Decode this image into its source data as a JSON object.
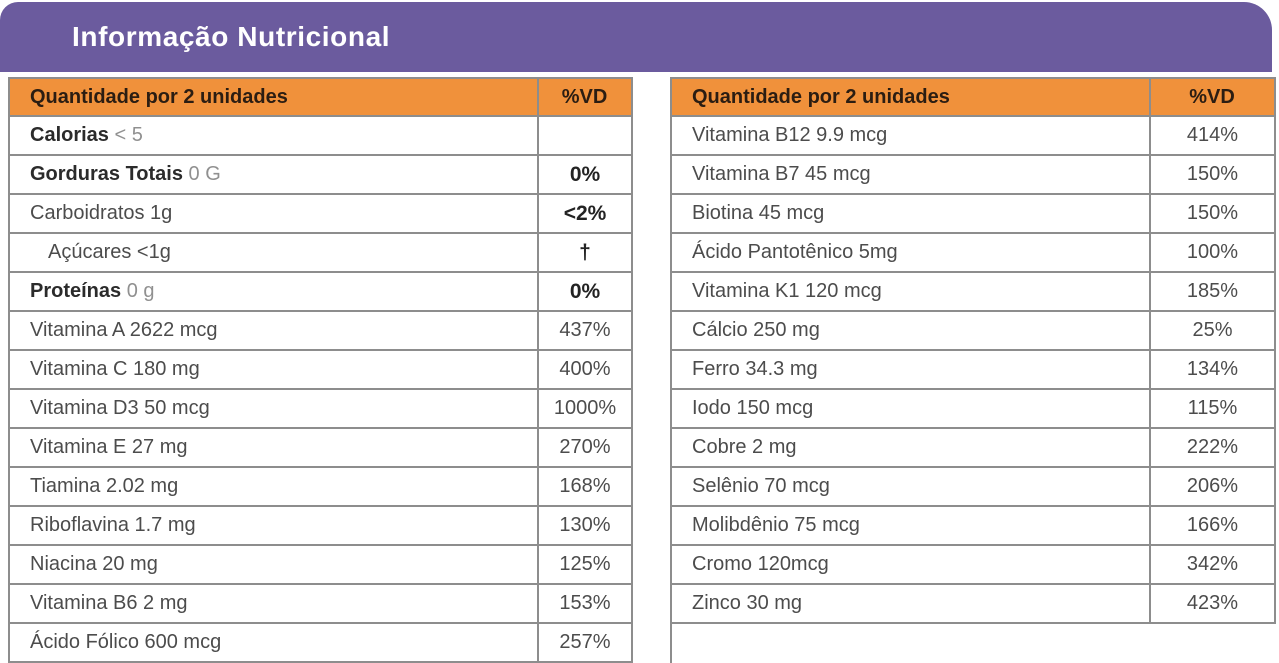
{
  "title": "Informação Nutricional",
  "colors": {
    "banner_purple": "#6b5b9e",
    "header_orange": "#f0913b",
    "border_gray": "#8d8d8d"
  },
  "left_table": {
    "header": {
      "quantity_label": "Quantidade por 2 unidades",
      "vd_label": "%VD"
    },
    "rows": [
      {
        "bold": "Calorias",
        "rest": " < 5",
        "muted": true,
        "indent": false,
        "vd": "",
        "vd_bold": false
      },
      {
        "bold": "Gorduras Totais",
        "rest": " 0 G",
        "muted": true,
        "indent": false,
        "vd": "0%",
        "vd_bold": true
      },
      {
        "bold": "",
        "rest": "Carboidratos 1g",
        "muted": false,
        "indent": false,
        "vd": "<2%",
        "vd_bold": true
      },
      {
        "bold": "",
        "rest": "Açúcares <1g",
        "muted": false,
        "indent": true,
        "vd": "†",
        "vd_bold": true
      },
      {
        "bold": "Proteínas",
        "rest": " 0 g",
        "muted": true,
        "indent": false,
        "vd": "0%",
        "vd_bold": true
      },
      {
        "bold": "",
        "rest": "Vitamina A 2622 mcg",
        "muted": false,
        "indent": false,
        "vd": "437%",
        "vd_bold": false
      },
      {
        "bold": "",
        "rest": "Vitamina C 180 mg",
        "muted": false,
        "indent": false,
        "vd": "400%",
        "vd_bold": false
      },
      {
        "bold": "",
        "rest": "Vitamina D3 50 mcg",
        "muted": false,
        "indent": false,
        "vd": "1000%",
        "vd_bold": false
      },
      {
        "bold": "",
        "rest": "Vitamina E 27 mg",
        "muted": false,
        "indent": false,
        "vd": "270%",
        "vd_bold": false
      },
      {
        "bold": "",
        "rest": "Tiamina 2.02 mg",
        "muted": false,
        "indent": false,
        "vd": "168%",
        "vd_bold": false
      },
      {
        "bold": "",
        "rest": "Riboflavina 1.7 mg",
        "muted": false,
        "indent": false,
        "vd": "130%",
        "vd_bold": false
      },
      {
        "bold": "",
        "rest": "Niacina 20 mg",
        "muted": false,
        "indent": false,
        "vd": "125%",
        "vd_bold": false
      },
      {
        "bold": "",
        "rest": "Vitamina B6 2 mg",
        "muted": false,
        "indent": false,
        "vd": "153%",
        "vd_bold": false
      },
      {
        "bold": "",
        "rest": "Ácido Fólico 600 mcg",
        "muted": false,
        "indent": false,
        "vd": "257%",
        "vd_bold": false
      }
    ]
  },
  "right_table": {
    "header": {
      "quantity_label": "Quantidade por 2 unidades",
      "vd_label": "%VD"
    },
    "rows": [
      {
        "bold": "",
        "rest": "Vitamina B12 9.9 mcg",
        "muted": false,
        "indent": false,
        "vd": "414%",
        "vd_bold": false
      },
      {
        "bold": "",
        "rest": "Vitamina B7 45 mcg",
        "muted": false,
        "indent": false,
        "vd": "150%",
        "vd_bold": false
      },
      {
        "bold": "",
        "rest": "Biotina 45 mcg",
        "muted": false,
        "indent": false,
        "vd": "150%",
        "vd_bold": false
      },
      {
        "bold": "",
        "rest": "Ácido Pantotênico 5mg",
        "muted": false,
        "indent": false,
        "vd": "100%",
        "vd_bold": false
      },
      {
        "bold": "",
        "rest": "Vitamina K1 120 mcg",
        "muted": false,
        "indent": false,
        "vd": "185%",
        "vd_bold": false
      },
      {
        "bold": "",
        "rest": "Cálcio 250 mg",
        "muted": false,
        "indent": false,
        "vd": "25%",
        "vd_bold": false
      },
      {
        "bold": "",
        "rest": "Ferro 34.3 mg",
        "muted": false,
        "indent": false,
        "vd": "134%",
        "vd_bold": false
      },
      {
        "bold": "",
        "rest": "Iodo 150 mcg",
        "muted": false,
        "indent": false,
        "vd": "115%",
        "vd_bold": false
      },
      {
        "bold": "",
        "rest": "Cobre 2 mg",
        "muted": false,
        "indent": false,
        "vd": "222%",
        "vd_bold": false
      },
      {
        "bold": "",
        "rest": "Selênio 70 mcg",
        "muted": false,
        "indent": false,
        "vd": "206%",
        "vd_bold": false
      },
      {
        "bold": "",
        "rest": "Molibdênio 75 mcg",
        "muted": false,
        "indent": false,
        "vd": "166%",
        "vd_bold": false
      },
      {
        "bold": "",
        "rest": "Cromo 120mcg",
        "muted": false,
        "indent": false,
        "vd": "342%",
        "vd_bold": false
      },
      {
        "bold": "",
        "rest": "Zinco 30 mg",
        "muted": false,
        "indent": false,
        "vd": "423%",
        "vd_bold": false
      }
    ]
  }
}
